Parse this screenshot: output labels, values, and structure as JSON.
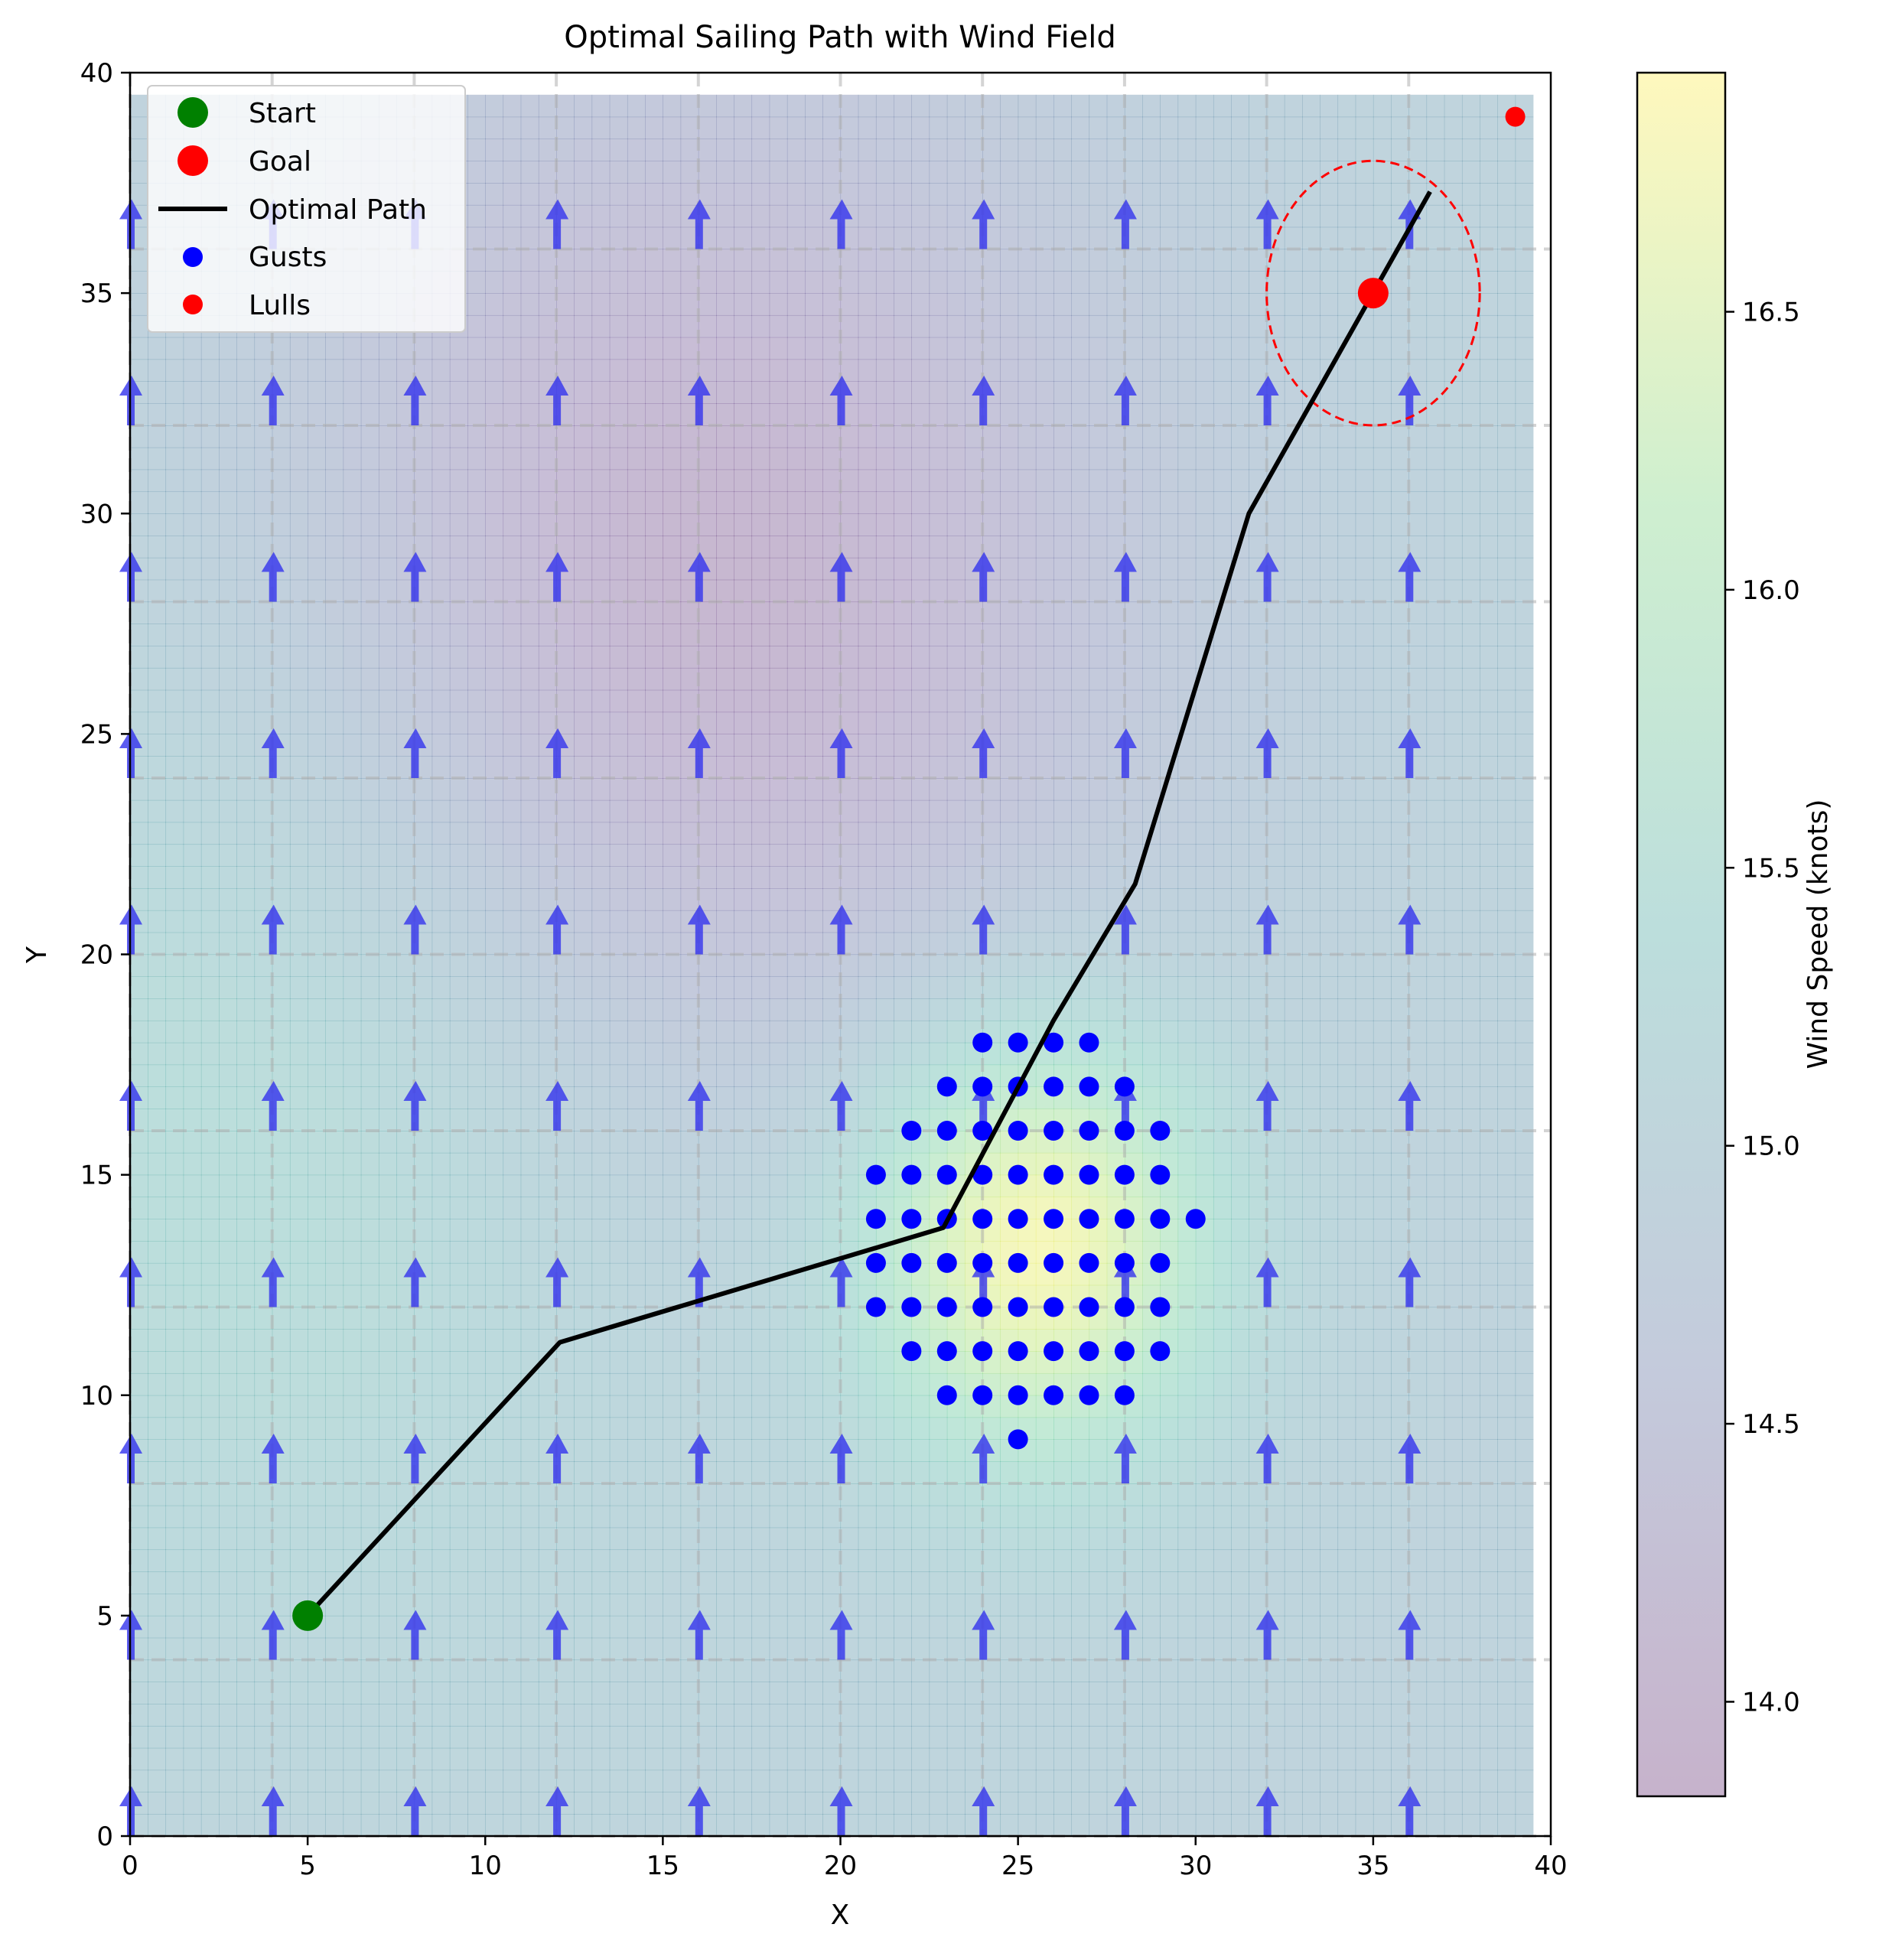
{
  "chart_data": {
    "type": "scatter",
    "title": "Optimal Sailing Path with Wind Field",
    "xlabel": "X",
    "ylabel": "Y",
    "xlim": [
      0,
      40
    ],
    "ylim": [
      0,
      40
    ],
    "xticks": [
      0,
      5,
      10,
      15,
      20,
      25,
      30,
      35,
      40
    ],
    "yticks": [
      0,
      5,
      10,
      15,
      20,
      25,
      30,
      35,
      40
    ],
    "grid": true,
    "grid_style": "dashed",
    "grid_x": [
      0,
      4,
      8,
      12,
      16,
      20,
      24,
      28,
      32,
      36
    ],
    "grid_y": [
      0,
      4,
      8,
      12,
      16,
      20,
      24,
      28,
      32,
      36
    ],
    "legend_position": "top-left",
    "legend": [
      {
        "label": "Start",
        "kind": "marker",
        "color": "#008000"
      },
      {
        "label": "Goal",
        "kind": "marker",
        "color": "#ff0000"
      },
      {
        "label": "Optimal Path",
        "kind": "line",
        "color": "#000000"
      },
      {
        "label": "Gusts",
        "kind": "scatter",
        "color": "#0000ff"
      },
      {
        "label": "Lulls",
        "kind": "scatter",
        "color": "#ff0000"
      }
    ],
    "start": {
      "x": 5,
      "y": 5
    },
    "goal": {
      "x": 35,
      "y": 35
    },
    "goal_radius": 3,
    "optimal_path": [
      [
        5,
        5
      ],
      [
        12.1,
        11.2
      ],
      [
        22.9,
        13.8
      ],
      [
        26,
        18.5
      ],
      [
        28.3,
        21.6
      ],
      [
        31.5,
        30
      ],
      [
        36.6,
        37.3
      ]
    ],
    "gusts": [
      [
        24,
        18
      ],
      [
        25,
        18
      ],
      [
        26,
        18
      ],
      [
        27,
        18
      ],
      [
        23,
        17
      ],
      [
        24,
        17
      ],
      [
        25,
        17
      ],
      [
        26,
        17
      ],
      [
        27,
        17
      ],
      [
        28,
        17
      ],
      [
        22,
        16
      ],
      [
        23,
        16
      ],
      [
        24,
        16
      ],
      [
        25,
        16
      ],
      [
        26,
        16
      ],
      [
        27,
        16
      ],
      [
        28,
        16
      ],
      [
        29,
        16
      ],
      [
        21,
        15
      ],
      [
        22,
        15
      ],
      [
        23,
        15
      ],
      [
        24,
        15
      ],
      [
        25,
        15
      ],
      [
        26,
        15
      ],
      [
        27,
        15
      ],
      [
        28,
        15
      ],
      [
        29,
        15
      ],
      [
        21,
        14
      ],
      [
        22,
        14
      ],
      [
        23,
        14
      ],
      [
        24,
        14
      ],
      [
        25,
        14
      ],
      [
        26,
        14
      ],
      [
        27,
        14
      ],
      [
        28,
        14
      ],
      [
        29,
        14
      ],
      [
        30,
        14
      ],
      [
        21,
        13
      ],
      [
        22,
        13
      ],
      [
        23,
        13
      ],
      [
        24,
        13
      ],
      [
        25,
        13
      ],
      [
        26,
        13
      ],
      [
        27,
        13
      ],
      [
        28,
        13
      ],
      [
        29,
        13
      ],
      [
        21,
        12
      ],
      [
        22,
        12
      ],
      [
        23,
        12
      ],
      [
        24,
        12
      ],
      [
        25,
        12
      ],
      [
        26,
        12
      ],
      [
        27,
        12
      ],
      [
        28,
        12
      ],
      [
        29,
        12
      ],
      [
        22,
        11
      ],
      [
        23,
        11
      ],
      [
        24,
        11
      ],
      [
        25,
        11
      ],
      [
        26,
        11
      ],
      [
        27,
        11
      ],
      [
        28,
        11
      ],
      [
        29,
        11
      ],
      [
        23,
        10
      ],
      [
        24,
        10
      ],
      [
        25,
        10
      ],
      [
        26,
        10
      ],
      [
        27,
        10
      ],
      [
        28,
        10
      ],
      [
        25,
        9
      ]
    ],
    "lulls": [
      [
        39,
        39
      ]
    ],
    "wind_field": {
      "extent": [
        0,
        39.5,
        0,
        39.5
      ],
      "arrow_x": [
        0,
        4,
        8,
        12,
        16,
        20,
        24,
        28,
        32,
        36
      ],
      "arrow_y": [
        0,
        4,
        8,
        12,
        16,
        20,
        24,
        28,
        32,
        36
      ],
      "arrow_color": "#3333ee",
      "base_speed": 15,
      "gust_center": [
        25.5,
        13.5
      ],
      "gust_peak": 1.9,
      "gust_sigma": 3.6,
      "lull_center": [
        16,
        28
      ],
      "lull_depth": 1.1,
      "lull_sigma": 8.5,
      "west_bump_center": [
        5,
        17
      ],
      "west_bump": 0.55,
      "west_bump_sigma": 8.5
    },
    "colorbar": {
      "label": "Wind Speed (knots)",
      "min": 13.83,
      "max": 16.93,
      "ticks": [
        14.0,
        14.5,
        15.0,
        15.5,
        16.0,
        16.5
      ],
      "colormap": "viridis",
      "alpha": 0.3
    }
  }
}
